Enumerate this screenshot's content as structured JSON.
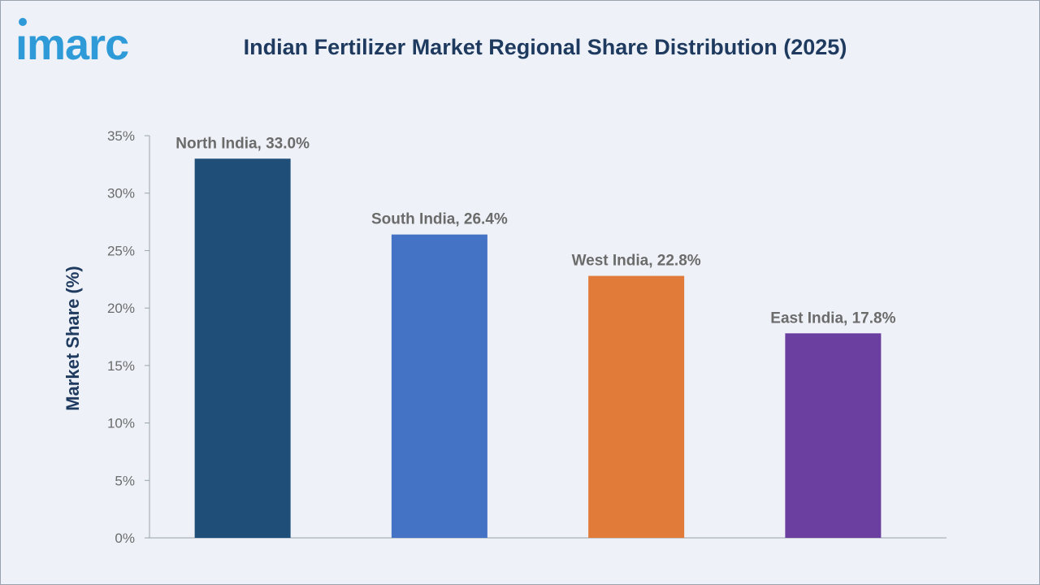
{
  "header": {
    "logo_text": "imarc",
    "title": "Indian Fertilizer Market Regional Share Distribution (2025)"
  },
  "chart_data": {
    "type": "bar",
    "title": "Indian Fertilizer Market Regional Share Distribution (2025)",
    "xlabel": "",
    "ylabel": "Market Share (%)",
    "ylim": [
      0,
      35
    ],
    "yticks": [
      0,
      5,
      10,
      15,
      20,
      25,
      30,
      35
    ],
    "ytick_labels": [
      "0%",
      "5%",
      "10%",
      "15%",
      "20%",
      "25%",
      "30%",
      "35%"
    ],
    "grid": false,
    "categories": [
      "North India",
      "South India",
      "West India",
      "East India"
    ],
    "values": [
      33.0,
      26.4,
      22.8,
      17.8
    ],
    "data_labels": [
      "North India, 33.0%",
      "South India, 26.4%",
      "West India, 22.8%",
      "East India, 17.8%"
    ],
    "colors": [
      "#1f4e79",
      "#4472c4",
      "#e07b39",
      "#6b3fa0"
    ],
    "axis_color": "#9aa3ad",
    "label_color": "#6b6b6b",
    "ylabel_color": "#1f3a5f"
  }
}
